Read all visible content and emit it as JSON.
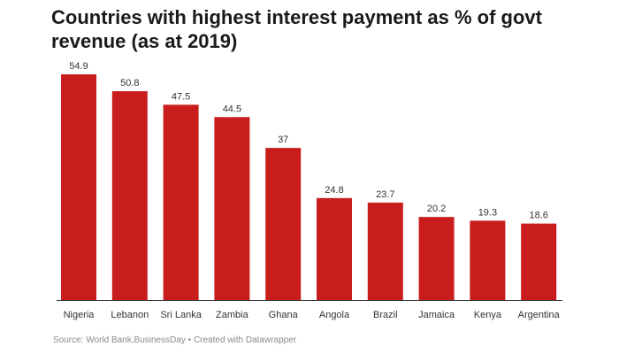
{
  "chart_data": {
    "type": "bar",
    "title": "Countries with highest interest payment as % of govt revenue (as at 2019)",
    "categories": [
      "Nigeria",
      "Lebanon",
      "Sri Lanka",
      "Zambia",
      "Ghana",
      "Angola",
      "Brazil",
      "Jamaica",
      "Kenya",
      "Argentina"
    ],
    "values": [
      54.9,
      50.8,
      47.5,
      44.5,
      37,
      24.8,
      23.7,
      20.2,
      19.3,
      18.6
    ],
    "value_labels": [
      "54.9",
      "50.8",
      "47.5",
      "44.5",
      "37",
      "24.8",
      "23.7",
      "20.2",
      "19.3",
      "18.6"
    ],
    "ylim": [
      0,
      60
    ],
    "grid": false,
    "bar_color": "#c91d1d",
    "xlabel": "",
    "ylabel": ""
  },
  "source": "Source: World Bank,BusinessDay • Created with Datawrapper"
}
